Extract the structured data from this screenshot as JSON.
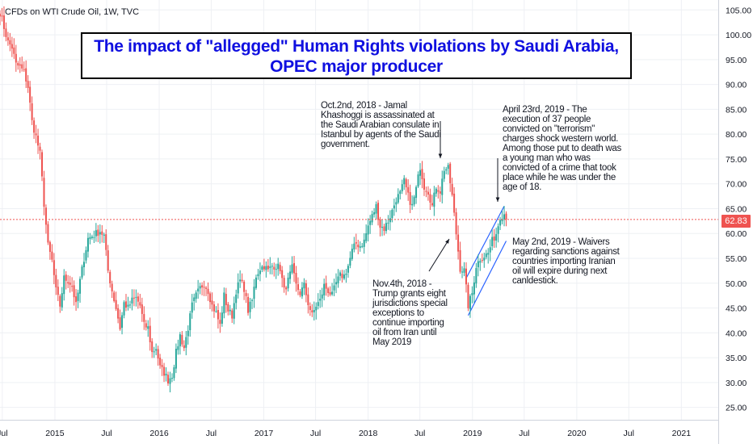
{
  "header": {
    "symbol_label": "CFDs on WTI Crude Oil, 1W, TVC"
  },
  "title": {
    "line1": "The impact of \"allegged\" Human Rights violations by Saudi Arabia,",
    "line2": "OPEC major producer"
  },
  "annotations": {
    "khashoggi": "Oct.2nd, 2018 - Jamal\nKhashoggi is assassinated at\nthe Saudi Arabian consulate in\nIstanbul by agents of the Saudi\ngovernment.",
    "execution": "April 23rd, 2019 - The\nexecution of 37 people\nconvicted on \"terrorism\"\ncharges shock western world.\nAmong those put to death was\na young man who was\nconvicted of a crime that took\nplace while he was under the\nage of 18.",
    "waivers": "May 2nd, 2019 - Waivers\nregarding sanctions against\ncountries importing Iranian\noil will expire during next\ncanldestick.",
    "trump": "Nov.4th, 2018 -\nTrump grants eight\njurisdictions special\nexceptions to\ncontinue importing\noil from Iran until\nMay 2019"
  },
  "price_tag": "62.83",
  "colors": {
    "up": "#26a69a",
    "down": "#ef5350",
    "trendline": "#2962ff",
    "price_line": "#ef5350",
    "title": "#1010e0"
  },
  "chart_data": {
    "type": "candlestick",
    "interval": "1W",
    "ylim": [
      22.5,
      107
    ],
    "y_ticks": [
      "25.00",
      "30.00",
      "35.00",
      "40.00",
      "45.00",
      "50.00",
      "55.00",
      "60.00",
      "65.00",
      "70.00",
      "75.00",
      "80.00",
      "85.00",
      "90.00",
      "95.00",
      "100.00",
      "105.00"
    ],
    "x_ticks": [
      "Jul",
      "2015",
      "Jul",
      "2016",
      "Jul",
      "2017",
      "Jul",
      "2018",
      "Jul",
      "2019",
      "Jul",
      "2020",
      "Jul",
      "2021"
    ],
    "x_tick_dates": [
      "2014-07-01",
      "2015-01-01",
      "2015-07-01",
      "2016-01-01",
      "2016-07-01",
      "2017-01-01",
      "2017-07-01",
      "2018-01-01",
      "2018-07-01",
      "2019-01-01",
      "2019-07-01",
      "2020-01-01",
      "2020-07-01",
      "2021-01-01"
    ],
    "x_range": [
      "2014-06-23",
      "2021-05-10"
    ],
    "current_price": 62.83,
    "weekly_closes": [
      {
        "date": "2014-06-23",
        "close": 104.5
      },
      {
        "date": "2014-07-07",
        "close": 101.5
      },
      {
        "date": "2014-07-21",
        "close": 98.5
      },
      {
        "date": "2014-08-04",
        "close": 97.5
      },
      {
        "date": "2014-08-18",
        "close": 94.0
      },
      {
        "date": "2014-09-01",
        "close": 93.5
      },
      {
        "date": "2014-09-15",
        "close": 92.5
      },
      {
        "date": "2014-09-29",
        "close": 89.5
      },
      {
        "date": "2014-10-13",
        "close": 82.5
      },
      {
        "date": "2014-10-27",
        "close": 79.5
      },
      {
        "date": "2014-11-10",
        "close": 76.0
      },
      {
        "date": "2014-11-24",
        "close": 66.0
      },
      {
        "date": "2014-12-08",
        "close": 57.5
      },
      {
        "date": "2014-12-22",
        "close": 54.5
      },
      {
        "date": "2015-01-05",
        "close": 48.5
      },
      {
        "date": "2015-01-19",
        "close": 45.5
      },
      {
        "date": "2015-02-02",
        "close": 51.0
      },
      {
        "date": "2015-02-16",
        "close": 50.5
      },
      {
        "date": "2015-03-02",
        "close": 49.5
      },
      {
        "date": "2015-03-16",
        "close": 45.5
      },
      {
        "date": "2015-03-30",
        "close": 50.5
      },
      {
        "date": "2015-04-13",
        "close": 55.0
      },
      {
        "date": "2015-04-27",
        "close": 59.0
      },
      {
        "date": "2015-05-11",
        "close": 59.5
      },
      {
        "date": "2015-05-25",
        "close": 60.0
      },
      {
        "date": "2015-06-08",
        "close": 60.5
      },
      {
        "date": "2015-06-22",
        "close": 59.5
      },
      {
        "date": "2015-07-06",
        "close": 52.5
      },
      {
        "date": "2015-07-20",
        "close": 48.5
      },
      {
        "date": "2015-08-03",
        "close": 45.0
      },
      {
        "date": "2015-08-17",
        "close": 41.0
      },
      {
        "date": "2015-08-31",
        "close": 46.0
      },
      {
        "date": "2015-09-14",
        "close": 45.0
      },
      {
        "date": "2015-09-28",
        "close": 46.5
      },
      {
        "date": "2015-10-12",
        "close": 47.0
      },
      {
        "date": "2015-10-26",
        "close": 45.5
      },
      {
        "date": "2015-11-09",
        "close": 41.5
      },
      {
        "date": "2015-11-23",
        "close": 41.0
      },
      {
        "date": "2015-12-07",
        "close": 36.0
      },
      {
        "date": "2015-12-21",
        "close": 37.0
      },
      {
        "date": "2016-01-04",
        "close": 33.0
      },
      {
        "date": "2016-01-18",
        "close": 32.0
      },
      {
        "date": "2016-02-01",
        "close": 30.5
      },
      {
        "date": "2016-02-15",
        "close": 31.5
      },
      {
        "date": "2016-02-29",
        "close": 36.0
      },
      {
        "date": "2016-03-14",
        "close": 39.5
      },
      {
        "date": "2016-03-28",
        "close": 37.0
      },
      {
        "date": "2016-04-11",
        "close": 41.0
      },
      {
        "date": "2016-04-25",
        "close": 45.5
      },
      {
        "date": "2016-05-09",
        "close": 47.5
      },
      {
        "date": "2016-05-23",
        "close": 49.0
      },
      {
        "date": "2016-06-06",
        "close": 50.0
      },
      {
        "date": "2016-06-20",
        "close": 48.5
      },
      {
        "date": "2016-07-04",
        "close": 45.5
      },
      {
        "date": "2016-07-18",
        "close": 44.0
      },
      {
        "date": "2016-08-01",
        "close": 41.5
      },
      {
        "date": "2016-08-15",
        "close": 47.5
      },
      {
        "date": "2016-08-29",
        "close": 44.5
      },
      {
        "date": "2016-09-12",
        "close": 43.5
      },
      {
        "date": "2016-09-26",
        "close": 48.5
      },
      {
        "date": "2016-10-10",
        "close": 50.5
      },
      {
        "date": "2016-10-24",
        "close": 49.0
      },
      {
        "date": "2016-11-07",
        "close": 44.5
      },
      {
        "date": "2016-11-21",
        "close": 46.5
      },
      {
        "date": "2016-12-05",
        "close": 51.5
      },
      {
        "date": "2016-12-19",
        "close": 53.0
      },
      {
        "date": "2017-01-02",
        "close": 53.5
      },
      {
        "date": "2017-01-16",
        "close": 52.5
      },
      {
        "date": "2017-01-30",
        "close": 53.5
      },
      {
        "date": "2017-02-13",
        "close": 53.5
      },
      {
        "date": "2017-02-27",
        "close": 53.0
      },
      {
        "date": "2017-03-13",
        "close": 48.5
      },
      {
        "date": "2017-03-27",
        "close": 50.5
      },
      {
        "date": "2017-04-10",
        "close": 53.0
      },
      {
        "date": "2017-04-24",
        "close": 49.5
      },
      {
        "date": "2017-05-08",
        "close": 48.0
      },
      {
        "date": "2017-05-22",
        "close": 49.5
      },
      {
        "date": "2017-06-05",
        "close": 46.0
      },
      {
        "date": "2017-06-19",
        "close": 43.5
      },
      {
        "date": "2017-07-03",
        "close": 45.5
      },
      {
        "date": "2017-07-17",
        "close": 46.5
      },
      {
        "date": "2017-07-31",
        "close": 49.5
      },
      {
        "date": "2017-08-14",
        "close": 48.5
      },
      {
        "date": "2017-08-28",
        "close": 47.5
      },
      {
        "date": "2017-09-11",
        "close": 50.0
      },
      {
        "date": "2017-09-25",
        "close": 51.5
      },
      {
        "date": "2017-10-09",
        "close": 51.5
      },
      {
        "date": "2017-10-23",
        "close": 53.5
      },
      {
        "date": "2017-11-06",
        "close": 56.5
      },
      {
        "date": "2017-11-20",
        "close": 58.0
      },
      {
        "date": "2017-12-04",
        "close": 57.5
      },
      {
        "date": "2017-12-18",
        "close": 58.5
      },
      {
        "date": "2018-01-01",
        "close": 61.5
      },
      {
        "date": "2018-01-15",
        "close": 63.5
      },
      {
        "date": "2018-01-29",
        "close": 65.5
      },
      {
        "date": "2018-02-12",
        "close": 61.5
      },
      {
        "date": "2018-02-26",
        "close": 61.0
      },
      {
        "date": "2018-03-12",
        "close": 62.5
      },
      {
        "date": "2018-03-26",
        "close": 64.5
      },
      {
        "date": "2018-04-09",
        "close": 67.0
      },
      {
        "date": "2018-04-23",
        "close": 68.0
      },
      {
        "date": "2018-05-07",
        "close": 70.5
      },
      {
        "date": "2018-05-21",
        "close": 67.5
      },
      {
        "date": "2018-06-04",
        "close": 65.5
      },
      {
        "date": "2018-06-18",
        "close": 69.0
      },
      {
        "date": "2018-07-02",
        "close": 73.5
      },
      {
        "date": "2018-07-16",
        "close": 69.5
      },
      {
        "date": "2018-07-30",
        "close": 68.5
      },
      {
        "date": "2018-08-13",
        "close": 65.5
      },
      {
        "date": "2018-08-27",
        "close": 69.5
      },
      {
        "date": "2018-09-10",
        "close": 68.5
      },
      {
        "date": "2018-09-24",
        "close": 73.0
      },
      {
        "date": "2018-10-08",
        "close": 73.0
      },
      {
        "date": "2018-10-22",
        "close": 67.5
      },
      {
        "date": "2018-11-05",
        "close": 60.0
      },
      {
        "date": "2018-11-19",
        "close": 53.0
      },
      {
        "date": "2018-12-03",
        "close": 52.5
      },
      {
        "date": "2018-12-17",
        "close": 45.5
      },
      {
        "date": "2018-12-31",
        "close": 48.0
      },
      {
        "date": "2019-01-14",
        "close": 53.5
      },
      {
        "date": "2019-01-28",
        "close": 55.0
      },
      {
        "date": "2019-02-11",
        "close": 55.5
      },
      {
        "date": "2019-02-25",
        "close": 56.0
      },
      {
        "date": "2019-03-11",
        "close": 58.5
      },
      {
        "date": "2019-03-25",
        "close": 60.0
      },
      {
        "date": "2019-04-08",
        "close": 63.5
      },
      {
        "date": "2019-04-22",
        "close": 64.0
      },
      {
        "date": "2019-04-29",
        "close": 62.83
      }
    ]
  }
}
